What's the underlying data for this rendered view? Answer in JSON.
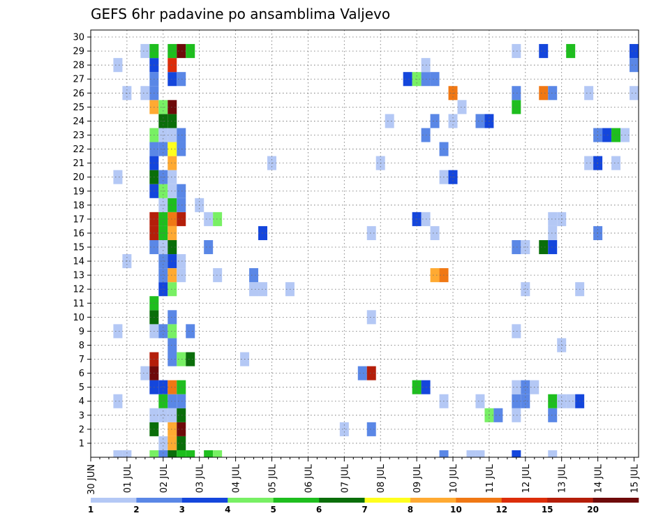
{
  "chart_data": {
    "type": "heatmap",
    "title": "GEFS 6hr padavine po ansamblima Valjevo",
    "xlabel": "",
    "ylabel": "",
    "x_tick_labels": [
      "30 JUN",
      "01 JUL",
      "02 JUL",
      "03 JUL",
      "04 JUL",
      "05 JUL",
      "06 JUL",
      "07 JUL",
      "08 JUL",
      "09 JUL",
      "10 JUL",
      "11 JUL",
      "12 JUL",
      "13 JUL",
      "14 JUL",
      "15 JUL"
    ],
    "y_tick_labels": [
      "1",
      "2",
      "3",
      "4",
      "5",
      "6",
      "7",
      "8",
      "9",
      "10",
      "11",
      "12",
      "13",
      "14",
      "15",
      "16",
      "17",
      "18",
      "19",
      "20",
      "21",
      "22",
      "23",
      "24",
      "25",
      "26",
      "27",
      "28",
      "29",
      "30"
    ],
    "x_range_steps": [
      0,
      60
    ],
    "y_range_members": [
      0,
      30
    ],
    "steps_per_day": 4,
    "grid": "dotted",
    "legend_placement": "bottom",
    "colorbar": {
      "labels": [
        "1",
        "2",
        "3",
        "4",
        "5",
        "6",
        "7",
        "8",
        "10",
        "12",
        "15",
        "20"
      ],
      "colors": [
        "#b4c8f5",
        "#5a87e6",
        "#1446dc",
        "#78f064",
        "#1ebe1e",
        "#0a6e0a",
        "#ffff1e",
        "#ffaa32",
        "#f07814",
        "#dc2d0a",
        "#b41e0a",
        "#6e0a0a"
      ]
    },
    "cells": [
      [
        0,
        3,
        1
      ],
      [
        0,
        4,
        1
      ],
      [
        0,
        7,
        4
      ],
      [
        0,
        8,
        2
      ],
      [
        0,
        9,
        6
      ],
      [
        0,
        10,
        5
      ],
      [
        0,
        11,
        5
      ],
      [
        0,
        13,
        5
      ],
      [
        0,
        14,
        4
      ],
      [
        0,
        39,
        2
      ],
      [
        0,
        42,
        1
      ],
      [
        0,
        43,
        1
      ],
      [
        0,
        47,
        3
      ],
      [
        0,
        51,
        1
      ],
      [
        1,
        8,
        1
      ],
      [
        1,
        9,
        8
      ],
      [
        1,
        10,
        6
      ],
      [
        2,
        7,
        6
      ],
      [
        2,
        9,
        8
      ],
      [
        2,
        10,
        12
      ],
      [
        2,
        28,
        1
      ],
      [
        2,
        31,
        2
      ],
      [
        3,
        7,
        1
      ],
      [
        3,
        8,
        1
      ],
      [
        3,
        9,
        1
      ],
      [
        3,
        10,
        6
      ],
      [
        3,
        44,
        4
      ],
      [
        3,
        45,
        2
      ],
      [
        3,
        47,
        1
      ],
      [
        3,
        51,
        2
      ],
      [
        4,
        8,
        5
      ],
      [
        4,
        9,
        2
      ],
      [
        4,
        10,
        2
      ],
      [
        4,
        3,
        1
      ],
      [
        4,
        39,
        1
      ],
      [
        4,
        43,
        1
      ],
      [
        4,
        47,
        2
      ],
      [
        4,
        48,
        2
      ],
      [
        4,
        51,
        5
      ],
      [
        4,
        52,
        1
      ],
      [
        4,
        53,
        1
      ],
      [
        4,
        54,
        3
      ],
      [
        5,
        7,
        3
      ],
      [
        5,
        8,
        3
      ],
      [
        5,
        9,
        9
      ],
      [
        5,
        10,
        5
      ],
      [
        5,
        36,
        5
      ],
      [
        5,
        37,
        3
      ],
      [
        5,
        47,
        1
      ],
      [
        5,
        48,
        2
      ],
      [
        5,
        49,
        1
      ],
      [
        6,
        6,
        1
      ],
      [
        6,
        7,
        12
      ],
      [
        6,
        30,
        2
      ],
      [
        6,
        31,
        11
      ],
      [
        7,
        7,
        11
      ],
      [
        7,
        9,
        2
      ],
      [
        7,
        10,
        4
      ],
      [
        7,
        11,
        6
      ],
      [
        7,
        17,
        1
      ],
      [
        8,
        9,
        2
      ],
      [
        8,
        52,
        1
      ],
      [
        9,
        3,
        1
      ],
      [
        9,
        7,
        1
      ],
      [
        9,
        8,
        2
      ],
      [
        9,
        9,
        4
      ],
      [
        9,
        11,
        2
      ],
      [
        9,
        47,
        1
      ],
      [
        10,
        7,
        6
      ],
      [
        10,
        9,
        2
      ],
      [
        10,
        31,
        1
      ],
      [
        11,
        7,
        5
      ],
      [
        12,
        8,
        3
      ],
      [
        12,
        9,
        4
      ],
      [
        12,
        18,
        1
      ],
      [
        12,
        19,
        1
      ],
      [
        12,
        22,
        1
      ],
      [
        12,
        48,
        1
      ],
      [
        12,
        54,
        1
      ],
      [
        13,
        8,
        2
      ],
      [
        13,
        9,
        8
      ],
      [
        13,
        10,
        1
      ],
      [
        13,
        14,
        1
      ],
      [
        13,
        18,
        2
      ],
      [
        13,
        38,
        8
      ],
      [
        13,
        39,
        9
      ],
      [
        14,
        4,
        1
      ],
      [
        14,
        8,
        2
      ],
      [
        14,
        9,
        3
      ],
      [
        14,
        10,
        1
      ],
      [
        15,
        7,
        2
      ],
      [
        15,
        8,
        1
      ],
      [
        15,
        9,
        6
      ],
      [
        15,
        13,
        2
      ],
      [
        15,
        47,
        2
      ],
      [
        15,
        48,
        1
      ],
      [
        15,
        50,
        6
      ],
      [
        15,
        51,
        3
      ],
      [
        16,
        7,
        11
      ],
      [
        16,
        8,
        5
      ],
      [
        16,
        9,
        8
      ],
      [
        16,
        19,
        3
      ],
      [
        16,
        31,
        1
      ],
      [
        16,
        38,
        1
      ],
      [
        16,
        51,
        1
      ],
      [
        16,
        56,
        2
      ],
      [
        17,
        7,
        11
      ],
      [
        17,
        8,
        5
      ],
      [
        17,
        9,
        9
      ],
      [
        17,
        10,
        11
      ],
      [
        17,
        13,
        1
      ],
      [
        17,
        14,
        4
      ],
      [
        17,
        36,
        3
      ],
      [
        17,
        37,
        1
      ],
      [
        17,
        51,
        1
      ],
      [
        17,
        52,
        1
      ],
      [
        18,
        8,
        1
      ],
      [
        18,
        9,
        5
      ],
      [
        18,
        10,
        2
      ],
      [
        18,
        12,
        1
      ],
      [
        19,
        7,
        3
      ],
      [
        19,
        8,
        4
      ],
      [
        19,
        9,
        1
      ],
      [
        19,
        10,
        2
      ],
      [
        20,
        3,
        1
      ],
      [
        20,
        7,
        6
      ],
      [
        20,
        8,
        2
      ],
      [
        20,
        9,
        1
      ],
      [
        20,
        39,
        1
      ],
      [
        20,
        40,
        3
      ],
      [
        21,
        7,
        3
      ],
      [
        21,
        9,
        8
      ],
      [
        21,
        20,
        1
      ],
      [
        21,
        32,
        1
      ],
      [
        21,
        55,
        1
      ],
      [
        21,
        56,
        3
      ],
      [
        21,
        58,
        1
      ],
      [
        22,
        7,
        2
      ],
      [
        22,
        8,
        2
      ],
      [
        22,
        9,
        7
      ],
      [
        22,
        10,
        2
      ],
      [
        22,
        39,
        2
      ],
      [
        23,
        7,
        4
      ],
      [
        23,
        8,
        1
      ],
      [
        23,
        9,
        1
      ],
      [
        23,
        10,
        2
      ],
      [
        23,
        37,
        2
      ],
      [
        23,
        56,
        2
      ],
      [
        23,
        57,
        3
      ],
      [
        23,
        58,
        5
      ],
      [
        23,
        59,
        1
      ],
      [
        24,
        8,
        6
      ],
      [
        24,
        9,
        6
      ],
      [
        24,
        33,
        1
      ],
      [
        24,
        38,
        2
      ],
      [
        24,
        40,
        1
      ],
      [
        24,
        43,
        2
      ],
      [
        24,
        44,
        3
      ],
      [
        25,
        7,
        8
      ],
      [
        25,
        8,
        4
      ],
      [
        25,
        9,
        12
      ],
      [
        25,
        41,
        1
      ],
      [
        25,
        47,
        5
      ],
      [
        26,
        4,
        1
      ],
      [
        26,
        6,
        1
      ],
      [
        26,
        7,
        2
      ],
      [
        26,
        40,
        9
      ],
      [
        26,
        47,
        2
      ],
      [
        26,
        50,
        9
      ],
      [
        26,
        51,
        2
      ],
      [
        26,
        55,
        1
      ],
      [
        26,
        60,
        1
      ],
      [
        27,
        7,
        2
      ],
      [
        27,
        9,
        3
      ],
      [
        27,
        10,
        2
      ],
      [
        27,
        35,
        3
      ],
      [
        27,
        36,
        4
      ],
      [
        27,
        37,
        2
      ],
      [
        27,
        38,
        2
      ],
      [
        28,
        3,
        1
      ],
      [
        28,
        7,
        3
      ],
      [
        28,
        9,
        10
      ],
      [
        28,
        37,
        1
      ],
      [
        28,
        60,
        2
      ],
      [
        29,
        6,
        1
      ],
      [
        29,
        7,
        5
      ],
      [
        29,
        9,
        5
      ],
      [
        29,
        10,
        12
      ],
      [
        29,
        11,
        5
      ],
      [
        29,
        47,
        1
      ],
      [
        29,
        50,
        3
      ],
      [
        29,
        53,
        5
      ],
      [
        29,
        60,
        3
      ]
    ]
  }
}
